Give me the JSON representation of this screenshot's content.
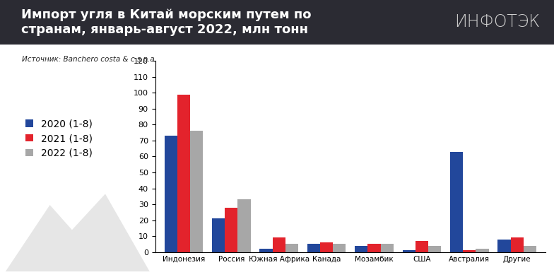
{
  "chart_data": {
    "type": "bar",
    "title": "Импорт угля в Китай морским путем по странам, январь-август 2022, млн тонн",
    "logo": "ИНФОТЭК",
    "source": "Источник: Banchero costa & c s.p.a",
    "categories": [
      "Индонезия",
      "Россия",
      "Южная Африка",
      "Канада",
      "Мозамбик",
      "США",
      "Австралия",
      "Другие"
    ],
    "series": [
      {
        "name": "2020 (1-8)",
        "color": "#22479b",
        "values": [
          73,
          21,
          2,
          5,
          4,
          1,
          63,
          8
        ]
      },
      {
        "name": "2021 (1-8)",
        "color": "#e3232c",
        "values": [
          99,
          28,
          9,
          6,
          5,
          7,
          1,
          9
        ]
      },
      {
        "name": "2022 (1-8)",
        "color": "#a7a7a7",
        "values": [
          76,
          33,
          5,
          5,
          5,
          4,
          2,
          4
        ]
      }
    ],
    "ylim": [
      0,
      120
    ],
    "yticks": [
      0,
      10,
      20,
      30,
      40,
      50,
      60,
      70,
      80,
      90,
      100,
      110,
      120
    ],
    "grid": false,
    "legend": "center left"
  }
}
